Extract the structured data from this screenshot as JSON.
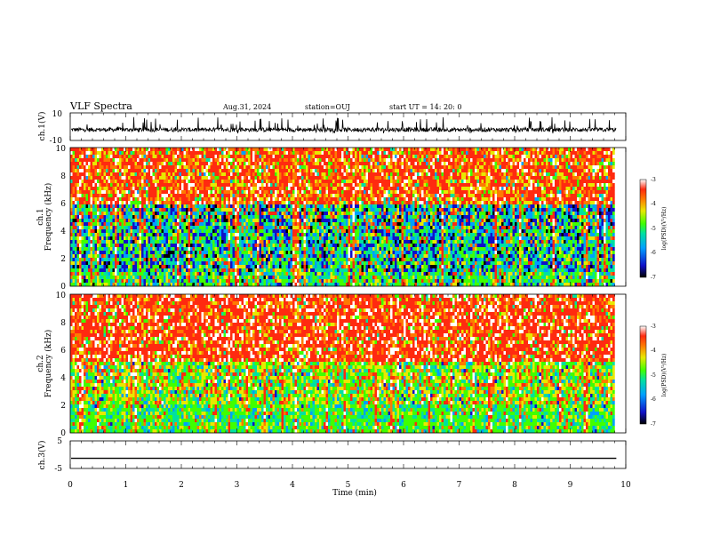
{
  "header": {
    "title": "VLF Spectra",
    "date": "Aug.31, 2024",
    "station": "station=OUJ",
    "start": "start UT =  14: 20: 0"
  },
  "colors": {
    "waveform": "#000000",
    "spectrogram_palette": [
      "#000000",
      "#1010c8",
      "#00a0ff",
      "#00e0a0",
      "#40ff00",
      "#e8e800",
      "#ff7a00",
      "#ff2a10",
      "#ffffff"
    ]
  },
  "chart_data": [
    {
      "type": "line",
      "panel": "ch1-waveform",
      "ylabel": "ch.1(V)",
      "yticks": [
        "10",
        "-10"
      ],
      "ylim": [
        -10,
        10
      ],
      "xlim": [
        0,
        10
      ],
      "x_end": 9.83,
      "baseline": -2.2,
      "amplitude_range": [
        -5,
        7
      ],
      "grid": false
    },
    {
      "type": "heatmap",
      "panel": "ch1-spectrogram",
      "ylabel": "ch.1\nFrequency  (kHz)",
      "ylabel_lines": [
        "ch.1",
        "Frequency  (kHz)"
      ],
      "yticks": [
        "0",
        "2",
        "4",
        "6",
        "8",
        "10"
      ],
      "ylim": [
        0,
        10
      ],
      "xlim": [
        0,
        10
      ],
      "x_end": 9.83,
      "colorbar": {
        "label": "log(PSD)(V²/Hz)",
        "ticks": [
          "-3",
          "-4",
          "-5",
          "-6",
          "-7"
        ],
        "range": [
          -7,
          -3
        ]
      },
      "dominant": {
        "0-1 kHz": "green",
        "1-4 kHz": "green/blue",
        "4-6 kHz": "blue/green",
        "6-10 kHz": "red/orange"
      }
    },
    {
      "type": "heatmap",
      "panel": "ch2-spectrogram",
      "ylabel": "ch.2\nFrequency  (kHz)",
      "ylabel_lines": [
        "ch.2",
        "Frequency  (kHz)"
      ],
      "yticks": [
        "0",
        "2",
        "4",
        "6",
        "8",
        "10"
      ],
      "ylim": [
        0,
        10
      ],
      "xlim": [
        0,
        10
      ],
      "x_end": 9.83,
      "colorbar": {
        "label": "log(PSD)(V²/Hz)",
        "ticks": [
          "-3",
          "-4",
          "-5",
          "-6",
          "-7"
        ],
        "range": [
          -7,
          -3
        ]
      },
      "dominant": {
        "0-2 kHz": "green",
        "2-5 kHz": "green/yellow",
        "5-10 kHz": "red"
      }
    },
    {
      "type": "line",
      "panel": "ch3-waveform",
      "ylabel": "ch.3(V)",
      "yticks": [
        "5",
        "-5"
      ],
      "ylim": [
        -5,
        5
      ],
      "xlim": [
        0,
        10
      ],
      "x_end": 9.83,
      "values_constant": -1.3,
      "xlabel": "Time  (min)",
      "xticks": [
        "0",
        "1",
        "2",
        "3",
        "4",
        "5",
        "6",
        "7",
        "8",
        "9",
        "10"
      ]
    }
  ]
}
